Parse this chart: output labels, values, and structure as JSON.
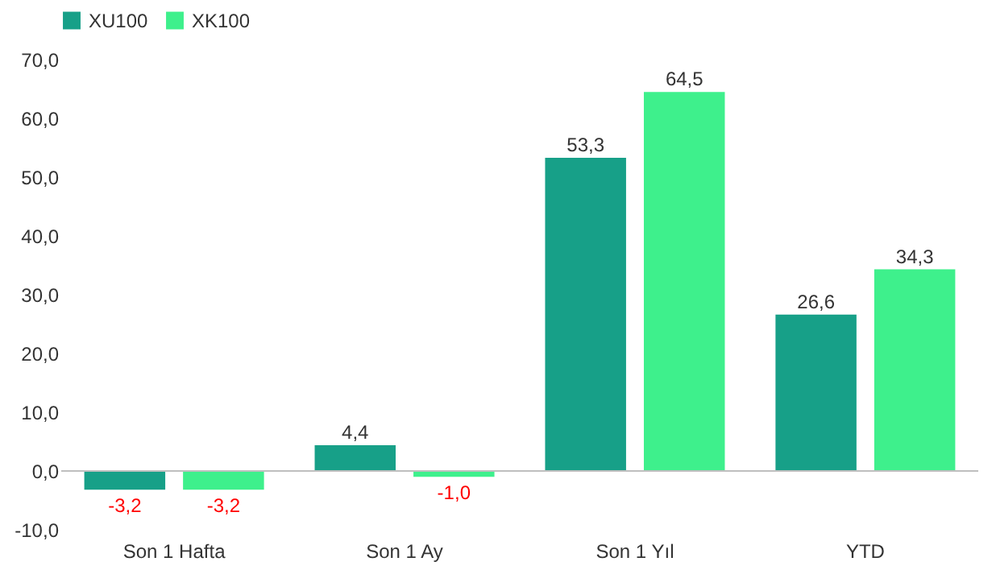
{
  "chart_data": {
    "type": "bar",
    "categories": [
      "Son 1 Hafta",
      "Son 1 Ay",
      "Son 1 Yıl",
      "YTD"
    ],
    "series": [
      {
        "name": "XU100",
        "color": "#17a088",
        "values": [
          -3.2,
          4.4,
          53.3,
          26.6
        ],
        "value_labels": [
          "-3,2",
          "4,4",
          "53,3",
          "26,6"
        ]
      },
      {
        "name": "XK100",
        "color": "#3ef08c",
        "values": [
          -3.2,
          -1.0,
          64.5,
          34.3
        ],
        "value_labels": [
          "-3,2",
          "-1,0",
          "64,5",
          "34,3"
        ]
      }
    ],
    "ylim": [
      -10,
      70
    ],
    "yticks": [
      {
        "value": -10,
        "label": "-10,0"
      },
      {
        "value": 0,
        "label": "0,0"
      },
      {
        "value": 10,
        "label": "10,0"
      },
      {
        "value": 20,
        "label": "20,0"
      },
      {
        "value": 30,
        "label": "30,0"
      },
      {
        "value": 40,
        "label": "40,0"
      },
      {
        "value": 50,
        "label": "50,0"
      },
      {
        "value": 60,
        "label": "60,0"
      },
      {
        "value": 70,
        "label": "70,0"
      }
    ],
    "ref_lines": [
      {
        "axis": "y",
        "value": 0,
        "color": "#bfbfbf"
      }
    ],
    "legend": "top"
  }
}
